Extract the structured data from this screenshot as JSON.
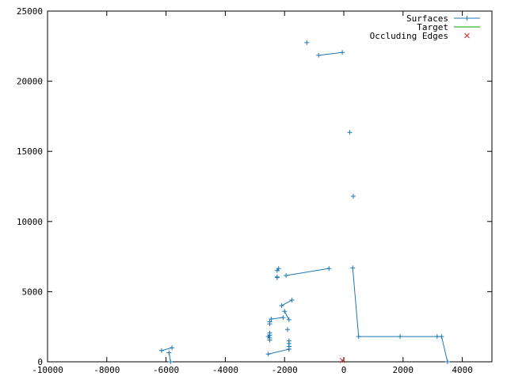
{
  "chart_data": {
    "type": "scatter",
    "title": "",
    "xlabel": "",
    "ylabel": "",
    "xlim": [
      -10000,
      5000
    ],
    "ylim": [
      0,
      25000
    ],
    "x_ticks": [
      -10000,
      -8000,
      -6000,
      -4000,
      -2000,
      0,
      2000,
      4000
    ],
    "y_ticks": [
      0,
      5000,
      10000,
      15000,
      20000,
      25000
    ],
    "grid": false,
    "legend_position": "top-right",
    "series": [
      {
        "name": "Surfaces",
        "color": "#1f77b4",
        "marker": "plus",
        "segments": [
          [
            [
              -1250,
              22750
            ]
          ],
          [
            [
              -850,
              21850
            ],
            [
              -50,
              22050
            ]
          ],
          [
            [
              200,
              16350
            ]
          ],
          [
            [
              320,
              11800
            ]
          ],
          [
            [
              -2250,
              6500
            ],
            [
              -2200,
              6650
            ]
          ],
          [
            [
              -2250,
              6050
            ],
            [
              -2250,
              6000
            ]
          ],
          [
            [
              -1950,
              6150
            ],
            [
              -500,
              6650
            ]
          ],
          [
            [
              300,
              6700
            ],
            [
              500,
              1800
            ],
            [
              1900,
              1800
            ],
            [
              3150,
              1800
            ],
            [
              3300,
              1800
            ],
            [
              3500,
              0
            ]
          ],
          [
            [
              -2100,
              4000
            ],
            [
              -1750,
              4400
            ]
          ],
          [
            [
              -2000,
              3600
            ],
            [
              -1850,
              3000
            ]
          ],
          [
            [
              -2450,
              3050
            ],
            [
              -2050,
              3150
            ]
          ],
          [
            [
              -2500,
              2850
            ],
            [
              -2500,
              2700
            ]
          ],
          [
            [
              -1900,
              2300
            ]
          ],
          [
            [
              -2500,
              2050
            ],
            [
              -2500,
              1550
            ]
          ],
          [
            [
              -2500,
              1900
            ],
            [
              -2550,
              1800
            ],
            [
              -2500,
              1700
            ]
          ],
          [
            [
              -1850,
              1500
            ],
            [
              -1850,
              900
            ]
          ],
          [
            [
              -1850,
              1300
            ],
            [
              -1850,
              1100
            ]
          ],
          [
            [
              -2550,
              550
            ],
            [
              -1850,
              900
            ]
          ],
          [
            [
              -6150,
              800
            ],
            [
              -5800,
              1000
            ]
          ],
          [
            [
              -5900,
              650
            ],
            [
              -5850,
              0
            ]
          ]
        ]
      },
      {
        "name": "Target",
        "color": "#00aa00",
        "marker": "line",
        "segments": []
      },
      {
        "name": "Occluding Edges",
        "color": "#d62728",
        "marker": "cross",
        "points": [
          [
            -50,
            100
          ]
        ]
      }
    ]
  }
}
